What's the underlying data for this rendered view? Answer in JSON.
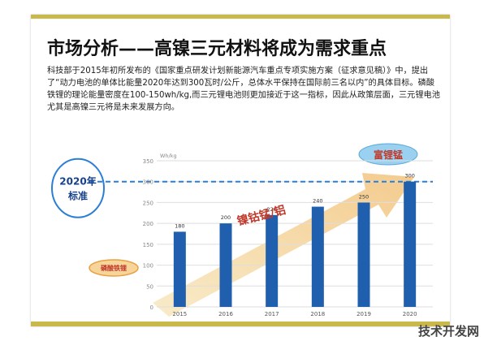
{
  "slide": {
    "title": "市场分析——高镍三元材料将成为需求重点",
    "paragraph": "科技部于2015年初所发布的《国家重点研发计划新能源汽车重点专项实施方案（征求意见稿）》中，提出了“动力电池的单体比能量2020年达到300瓦时/公斤，总体水平保持在国际前三名以内”的具体目标。磷酸铁锂的理论能量密度在100-150wh/kg,而三元锂电池则更加接近于这一指标，因此从政策层面，三元锂电池尤其是高镍三元将是未来发展方向。"
  },
  "chart_data": {
    "type": "bar",
    "categories": [
      "2015",
      "2016",
      "2017",
      "2018",
      "2019",
      "2020"
    ],
    "values": [
      180,
      200,
      220,
      240,
      250,
      300
    ],
    "ylabel": "Wh/kg",
    "ylim": [
      0,
      350
    ],
    "yticks": [
      0,
      50,
      100,
      150,
      200,
      250,
      300,
      350
    ],
    "reference_value": 300,
    "bar_color": "#1f5fae",
    "annotations": {
      "target": "2020年\n标准",
      "lfp": "磷酸铁锂",
      "ncm": "镍钴锰/铝",
      "nca": "富锂锰"
    }
  },
  "watermark": "技术开发网"
}
